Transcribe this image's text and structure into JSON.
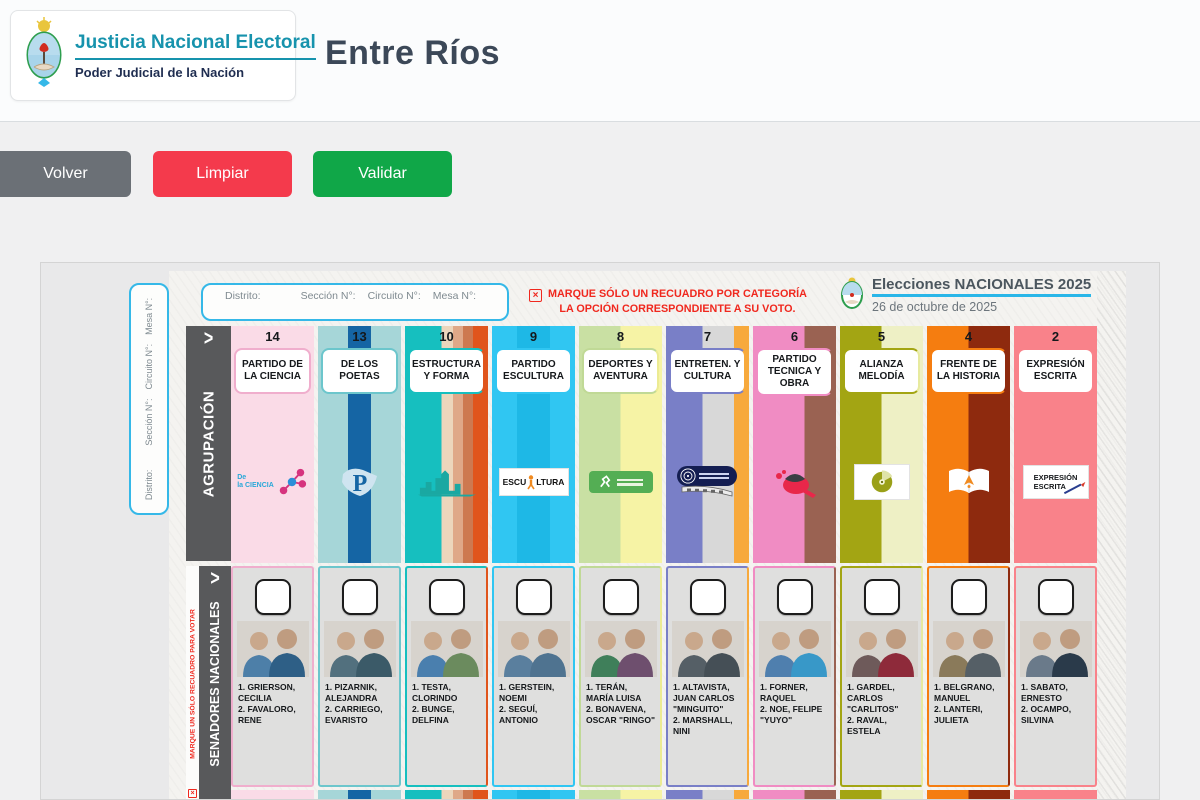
{
  "header": {
    "brand_title": "Justicia Nacional Electoral",
    "brand_subtitle": "Poder Judicial de la Nación",
    "page_title": "Entre Ríos"
  },
  "toolbar": {
    "back_label": "Volver",
    "clear_label": "Limpiar",
    "validate_label": "Validar"
  },
  "icons": {
    "x_mark": "×",
    "chevron_right": ">"
  },
  "colors": {
    "accent_cyan": "#29b6e8",
    "warning_red": "#f0281e",
    "back_gray": "#6b7076",
    "clear_red": "#f43a4c",
    "validate_green": "#10a748",
    "section_bar_gray": "#58595b"
  },
  "ballot": {
    "district_fields": [
      "Distrito:",
      "Sección N°:",
      "Circuito N°:",
      "Mesa N°:"
    ],
    "category_warning_line1": "MARQUE SÓLO UN RECUADRO POR CATEGORÍA",
    "category_warning_line2": "LA OPCIÓN CORRESPONDIENTE A SU VOTO.",
    "election": {
      "title": "Elecciones NACIONALES 2025",
      "date": "26 de octubre de 2025"
    },
    "sections": {
      "agrupacion_label": "AGRUPACIÓN",
      "senadores_label": "SENADORES NACIONALES",
      "senadores_warning": "MARQUE UN SÓLO RECUADRO PARA VOTAR"
    },
    "parties": [
      {
        "number": "14",
        "name": "PARTIDO DE LA CIENCIA",
        "logo": {
          "kind": "ciencia",
          "text": "De la CIENCIA"
        },
        "stripes": [
          [
            "#fadbe7",
            0,
            100
          ]
        ],
        "border_left": "#f0aecd",
        "border_right": "#f0aecd",
        "candidates": [
          "1. GRIERSON, CECILIA",
          "2. FAVALORO, RENE"
        ]
      },
      {
        "number": "13",
        "name": "DE LOS POETAS",
        "logo": {
          "kind": "poetas",
          "text": "P"
        },
        "stripes": [
          [
            "#a6d6d8",
            0,
            36
          ],
          [
            "#1565a4",
            36,
            64
          ],
          [
            "#a6d6d8",
            64,
            100
          ]
        ],
        "border_left": "#6cc6cc",
        "border_right": "#6cc6cc",
        "candidates": [
          "1. PIZARNIK, ALEJANDRA",
          "2. CARRIEGO, EVARISTO"
        ]
      },
      {
        "number": "10",
        "name": "ESTRUCTURA Y FORMA",
        "logo": {
          "kind": "estructura",
          "text": ""
        },
        "stripes": [
          [
            "#16bfbf",
            0,
            44
          ],
          [
            "#ecd6bc",
            44,
            58
          ],
          [
            "#dfa888",
            58,
            70
          ],
          [
            "#cd7950",
            70,
            82
          ],
          [
            "#e0551c",
            82,
            100
          ]
        ],
        "border_left": "#16bfbf",
        "border_right": "#e0551c",
        "candidates": [
          "1. TESTA, CLORINDO",
          "2. BUNGE, DELFINA"
        ]
      },
      {
        "number": "9",
        "name": "PARTIDO ESCULTURA",
        "logo": {
          "kind": "escultura",
          "text_left": "ESCU",
          "text_right": "LTURA"
        },
        "stripes": [
          [
            "#30c6f2",
            0,
            30
          ],
          [
            "#1eb8e6",
            30,
            70
          ],
          [
            "#30c6f2",
            70,
            100
          ]
        ],
        "border_left": "#30c6f2",
        "border_right": "#30c6f2",
        "candidates": [
          "1. GERSTEIN, NOEMI",
          "2. SEGUÍ, ANTONIO"
        ]
      },
      {
        "number": "8",
        "name": "DEPORTES Y AVENTURA",
        "logo": {
          "kind": "deportes",
          "text": ""
        },
        "stripes": [
          [
            "#c9e0a3",
            0,
            50
          ],
          [
            "#f6f3a5",
            50,
            100
          ]
        ],
        "border_left": "#c0d996",
        "border_right": "#eceb93",
        "candidates": [
          "1. TERÁN, MARÍA LUISA",
          "2. BONAVENA, OSCAR \"RINGO\""
        ]
      },
      {
        "number": "7",
        "name": "ENTRETEN. Y CULTURA",
        "logo": {
          "kind": "entreten",
          "text": ""
        },
        "stripes": [
          [
            "#797fc7",
            0,
            44
          ],
          [
            "#d8d8d8",
            44,
            82
          ],
          [
            "#f7a93c",
            82,
            100
          ]
        ],
        "border_left": "#797fc7",
        "border_right": "#f7a93c",
        "candidates": [
          "1. ALTAVISTA, JUAN CARLOS \"MINGUITO\"",
          "2. MARSHALL, NINI"
        ]
      },
      {
        "number": "6",
        "name": "PARTIDO TECNICA Y OBRA",
        "logo": {
          "kind": "tecnica",
          "text": ""
        },
        "stripes": [
          [
            "#f08cc3",
            0,
            62
          ],
          [
            "#9a6252",
            62,
            100
          ]
        ],
        "border_left": "#f08cc3",
        "border_right": "#9a6252",
        "candidates": [
          "1. FORNER, RAQUEL",
          "2. NOE, FELIPE \"YUYO\""
        ]
      },
      {
        "number": "5",
        "name": "ALIANZA MELODÍA",
        "logo": {
          "kind": "melodia",
          "text": ""
        },
        "stripes": [
          [
            "#a3a513",
            0,
            50
          ],
          [
            "#eef0c5",
            50,
            100
          ]
        ],
        "border_left": "#a3a513",
        "border_right": "#e7ea9f",
        "candidates": [
          "1. GARDEL, CARLOS \"CARLITOS\"",
          "2. RAVAL, ESTELA"
        ]
      },
      {
        "number": "4",
        "name": "FRENTE DE LA HISTORIA",
        "logo": {
          "kind": "historia",
          "text": ""
        },
        "stripes": [
          [
            "#f57d10",
            0,
            50
          ],
          [
            "#8e2a0e",
            50,
            100
          ]
        ],
        "border_left": "#f57d10",
        "border_right": "#8e2a0e",
        "candidates": [
          "1. BELGRANO, MANUEL",
          "2. LANTERI, JULIETA"
        ]
      },
      {
        "number": "2",
        "name": "EXPRESIÓN ESCRITA",
        "logo": {
          "kind": "expresion",
          "text_line1": "EXPRESIÓN",
          "text_line2": "ESCRITA"
        },
        "stripes": [
          [
            "#f9828a",
            0,
            100
          ]
        ],
        "border_left": "#f9828a",
        "border_right": "#f9828a",
        "candidates": [
          "1. SABATO, ERNESTO",
          "2. OCAMPO, SILVINA"
        ]
      }
    ]
  }
}
